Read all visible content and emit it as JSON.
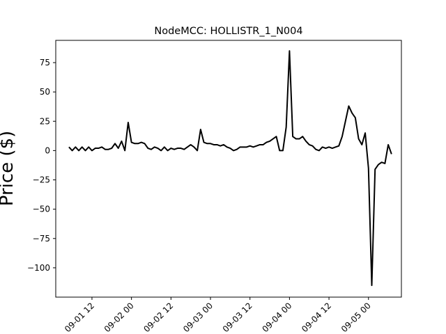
{
  "chart_data": {
    "type": "line",
    "title": "NodeMCC: HOLLISTR_1_N004",
    "xlabel": "",
    "ylabel": "Price ($)",
    "x_tick_labels": [
      "09-01 12",
      "09-02 00",
      "09-02 12",
      "09-03 00",
      "09-03 12",
      "09-04 00",
      "09-04 12",
      "09-05 00"
    ],
    "y_ticks": [
      75,
      50,
      25,
      0,
      -25,
      -50,
      -75,
      -100
    ],
    "y_tick_labels": [
      "75",
      "50",
      "25",
      "0",
      "−25",
      "−50",
      "−75",
      "−100"
    ],
    "ylim": [
      -125,
      94
    ],
    "xlim": [
      "2024-09-01 01:00",
      "2024-09-05 10:00"
    ],
    "grid": false,
    "line_color": "#000000",
    "series": [
      {
        "x": [
          "2024-09-01 05:00",
          "2024-09-01 06:00",
          "2024-09-01 07:00",
          "2024-09-01 08:00",
          "2024-09-01 09:00",
          "2024-09-01 10:00",
          "2024-09-01 11:00",
          "2024-09-01 12:00",
          "2024-09-01 13:00",
          "2024-09-01 14:00",
          "2024-09-01 15:00",
          "2024-09-01 16:00",
          "2024-09-01 17:00",
          "2024-09-01 18:00",
          "2024-09-01 19:00",
          "2024-09-01 20:00",
          "2024-09-01 21:00",
          "2024-09-01 22:00",
          "2024-09-01 23:00",
          "2024-09-02 00:00",
          "2024-09-02 01:00",
          "2024-09-02 02:00",
          "2024-09-02 03:00",
          "2024-09-02 04:00",
          "2024-09-02 05:00",
          "2024-09-02 06:00",
          "2024-09-02 07:00",
          "2024-09-02 08:00",
          "2024-09-02 09:00",
          "2024-09-02 10:00",
          "2024-09-02 11:00",
          "2024-09-02 12:00",
          "2024-09-02 13:00",
          "2024-09-02 14:00",
          "2024-09-02 15:00",
          "2024-09-02 16:00",
          "2024-09-02 17:00",
          "2024-09-02 18:00",
          "2024-09-02 19:00",
          "2024-09-02 20:00",
          "2024-09-02 21:00",
          "2024-09-02 22:00",
          "2024-09-02 23:00",
          "2024-09-03 00:00",
          "2024-09-03 01:00",
          "2024-09-03 02:00",
          "2024-09-03 03:00",
          "2024-09-03 04:00",
          "2024-09-03 05:00",
          "2024-09-03 06:00",
          "2024-09-03 07:00",
          "2024-09-03 08:00",
          "2024-09-03 09:00",
          "2024-09-03 10:00",
          "2024-09-03 11:00",
          "2024-09-03 12:00",
          "2024-09-03 13:00",
          "2024-09-03 14:00",
          "2024-09-03 15:00",
          "2024-09-03 16:00",
          "2024-09-03 17:00",
          "2024-09-03 18:00",
          "2024-09-03 19:00",
          "2024-09-03 20:00",
          "2024-09-03 21:00",
          "2024-09-03 22:00",
          "2024-09-03 23:00",
          "2024-09-04 00:00",
          "2024-09-04 01:00",
          "2024-09-04 02:00",
          "2024-09-04 03:00",
          "2024-09-04 04:00",
          "2024-09-04 05:00",
          "2024-09-04 06:00",
          "2024-09-04 07:00",
          "2024-09-04 08:00",
          "2024-09-04 09:00",
          "2024-09-04 10:00",
          "2024-09-04 11:00",
          "2024-09-04 12:00",
          "2024-09-04 13:00",
          "2024-09-04 14:00",
          "2024-09-04 15:00",
          "2024-09-04 16:00",
          "2024-09-04 17:00",
          "2024-09-04 18:00",
          "2024-09-04 19:00",
          "2024-09-04 20:00",
          "2024-09-04 21:00",
          "2024-09-04 22:00",
          "2024-09-04 23:00",
          "2024-09-05 00:00",
          "2024-09-05 01:00",
          "2024-09-05 02:00",
          "2024-09-05 03:00",
          "2024-09-05 04:00",
          "2024-09-05 05:00",
          "2024-09-05 06:00",
          "2024-09-05 07:00"
        ],
        "values": [
          3,
          0,
          3,
          0,
          3,
          0,
          3,
          0,
          2,
          2,
          3,
          1,
          1,
          2,
          6,
          2,
          8,
          0,
          24,
          7,
          6,
          6,
          7,
          6,
          2,
          1,
          3,
          2,
          0,
          3,
          0,
          2,
          1,
          2,
          2,
          1,
          3,
          5,
          3,
          0,
          18,
          7,
          6,
          6,
          5,
          5,
          4,
          5,
          3,
          2,
          0,
          1,
          3,
          3,
          3,
          4,
          3,
          4,
          5,
          5,
          7,
          8,
          10,
          12,
          0,
          0,
          20,
          85,
          12,
          10,
          10,
          12,
          8,
          5,
          4,
          1,
          0,
          3,
          2,
          3,
          2,
          3,
          4,
          12,
          25,
          38,
          32,
          28,
          10,
          5,
          15,
          -15,
          -115,
          -16,
          -12,
          -10,
          -11,
          5,
          -3
        ]
      }
    ]
  }
}
